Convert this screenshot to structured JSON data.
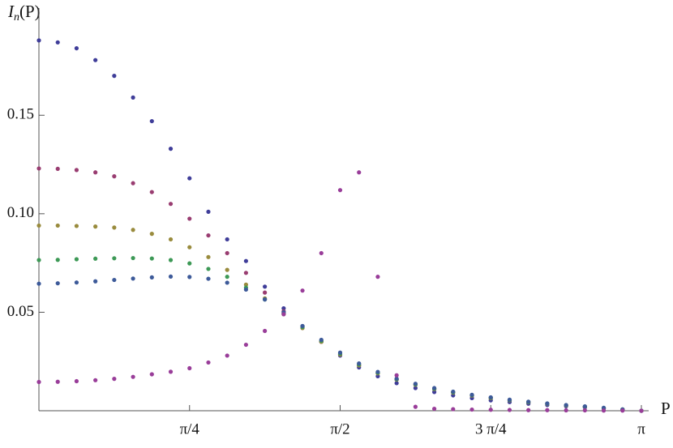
{
  "chart_data": {
    "type": "scatter",
    "y_label": {
      "main": "I",
      "sub": "n",
      "rest": "(P)"
    },
    "x_label": "P",
    "xlim": [
      0,
      3.14159
    ],
    "ylim": [
      0,
      0.19
    ],
    "xticks": [
      {
        "value": 0.7854,
        "label": "π/4"
      },
      {
        "value": 1.5708,
        "label": "π/2"
      },
      {
        "value": 2.3562,
        "label": "3 π/4"
      },
      {
        "value": 3.14159,
        "label": "π"
      }
    ],
    "yticks": [
      0.05,
      {
        "value": 0.1,
        "label": "0.10"
      },
      0.15
    ],
    "x": [
      0,
      0.0982,
      0.1963,
      0.2945,
      0.3927,
      0.4909,
      0.589,
      0.6872,
      0.7854,
      0.8836,
      0.9817,
      1.0799,
      1.1781,
      1.2763,
      1.3744,
      1.4726,
      1.5708,
      1.669,
      1.7671,
      1.8653,
      1.9635,
      2.0617,
      2.1598,
      2.258,
      2.3562,
      2.4544,
      2.5525,
      2.6507,
      2.7489,
      2.8471,
      2.9452,
      3.0434,
      3.1416
    ],
    "series": [
      {
        "color": "#3f3d99",
        "values": [
          0.188,
          0.187,
          0.184,
          0.178,
          0.17,
          0.159,
          0.147,
          0.133,
          0.118,
          0.101,
          0.087,
          0.076,
          0.063,
          0.052,
          0.043,
          0.035,
          0.028,
          0.022,
          0.0175,
          0.014,
          0.0115,
          0.0095,
          0.0078,
          0.0064,
          0.0053,
          0.0044,
          0.0036,
          0.0029,
          0.0023,
          0.0017,
          0.0011,
          0.0005,
          0
        ]
      },
      {
        "color": "#993d71",
        "values": [
          0.123,
          0.1228,
          0.1222,
          0.121,
          0.119,
          0.1155,
          0.111,
          0.105,
          0.0975,
          0.089,
          0.08,
          0.07,
          0.06,
          0.0505,
          0.042,
          0.035,
          0.0285,
          0.023,
          0.019,
          0.0158,
          0.0132,
          0.011,
          0.0092,
          0.0077,
          0.0064,
          0.0053,
          0.0043,
          0.0035,
          0.0027,
          0.002,
          0.0013,
          0.0006,
          0
        ]
      },
      {
        "color": "#998b3d",
        "values": [
          0.094,
          0.094,
          0.0938,
          0.0935,
          0.093,
          0.0918,
          0.0898,
          0.087,
          0.083,
          0.078,
          0.0715,
          0.064,
          0.057,
          0.049,
          0.042,
          0.035,
          0.0285,
          0.023,
          0.019,
          0.0158,
          0.0132,
          0.011,
          0.0092,
          0.0077,
          0.0064,
          0.0053,
          0.0043,
          0.0035,
          0.0027,
          0.002,
          0.0013,
          0.0006,
          0
        ]
      },
      {
        "color": "#3d9956",
        "values": [
          0.0765,
          0.0766,
          0.0769,
          0.0772,
          0.0774,
          0.0775,
          0.0773,
          0.0765,
          0.0748,
          0.072,
          0.068,
          0.0625,
          0.0565,
          0.0495,
          0.0425,
          0.0355,
          0.029,
          0.0235,
          0.0193,
          0.016,
          0.0134,
          0.0112,
          0.0094,
          0.0079,
          0.0066,
          0.0054,
          0.0044,
          0.0036,
          0.0028,
          0.0021,
          0.0014,
          0.0007,
          0
        ]
      },
      {
        "color": "#3d5a99",
        "values": [
          0.0645,
          0.0647,
          0.0651,
          0.0657,
          0.0664,
          0.0671,
          0.0677,
          0.0681,
          0.0679,
          0.067,
          0.065,
          0.0615,
          0.0565,
          0.05,
          0.043,
          0.036,
          0.0295,
          0.024,
          0.0197,
          0.0163,
          0.0137,
          0.0115,
          0.0097,
          0.0081,
          0.0068,
          0.0056,
          0.0046,
          0.0037,
          0.0029,
          0.0022,
          0.0015,
          0.0007,
          0
        ]
      },
      {
        "color": "#993d99",
        "values": [
          0.0146,
          0.0147,
          0.015,
          0.0155,
          0.0162,
          0.0172,
          0.0185,
          0.0198,
          0.0216,
          0.0245,
          0.028,
          0.0335,
          0.0405,
          0.049,
          0.061,
          0.08,
          0.112,
          0.121,
          0.068,
          0.018,
          0.002,
          0.001,
          0.0008,
          0.0006,
          0.0005,
          0.0004,
          0.0003,
          0.0003,
          0.0002,
          0.0002,
          0.0001,
          0.0001,
          0
        ]
      }
    ]
  }
}
